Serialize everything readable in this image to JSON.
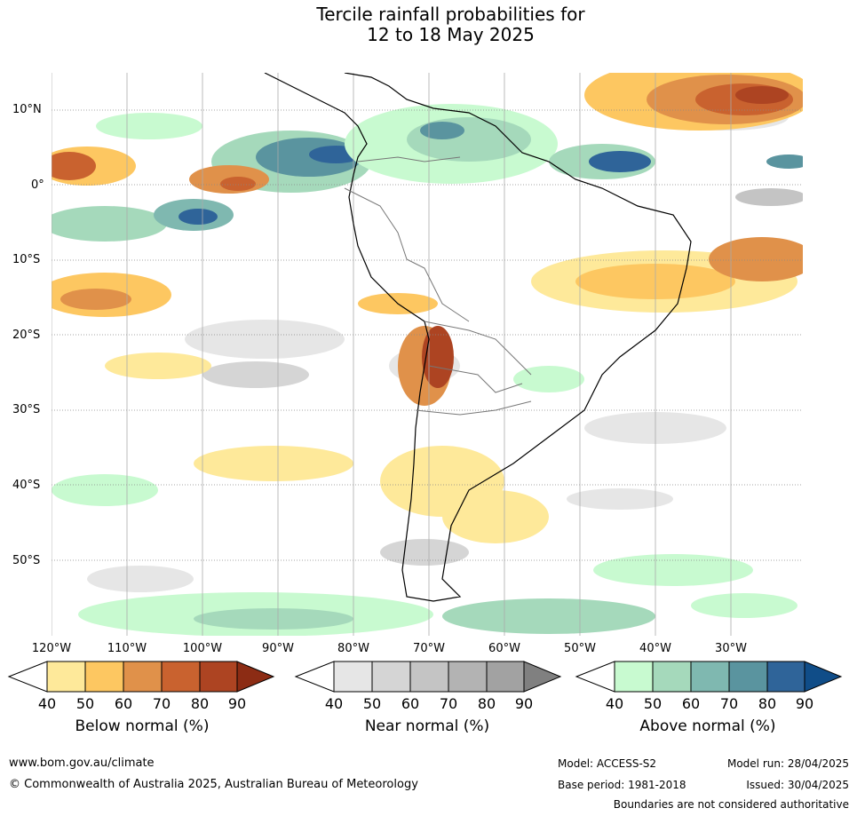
{
  "title_line1": "Tercile rainfall probabilities for",
  "title_line2": "12 to 18 May 2025",
  "lat_labels": [
    "10°N",
    "0°",
    "10°S",
    "20°S",
    "30°S",
    "40°S",
    "50°S"
  ],
  "lon_labels": [
    "120°W",
    "110°W",
    "100°W",
    "90°W",
    "80°W",
    "70°W",
    "60°W",
    "50°W",
    "40°W",
    "30°W"
  ],
  "colorbars": [
    {
      "label": "Below normal (%)",
      "ticks": [
        "40",
        "50",
        "60",
        "70",
        "80",
        "90"
      ],
      "colors": [
        "#ffffff",
        "#fee99a",
        "#fdc761",
        "#e0914a",
        "#c9622f",
        "#ad4422",
        "#8c2c14"
      ]
    },
    {
      "label": "Near normal (%)",
      "ticks": [
        "40",
        "50",
        "60",
        "70",
        "80",
        "90"
      ],
      "colors": [
        "#ffffff",
        "#e6e6e6",
        "#d5d5d5",
        "#c4c4c4",
        "#b3b3b3",
        "#a2a2a2",
        "#808080"
      ]
    },
    {
      "label": "Above normal (%)",
      "ticks": [
        "40",
        "50",
        "60",
        "70",
        "80",
        "90"
      ],
      "colors": [
        "#ffffff",
        "#c8fad0",
        "#a5d9bb",
        "#7fb8b0",
        "#5a949f",
        "#2f6499",
        "#104d88"
      ]
    }
  ],
  "footer": {
    "website": "www.bom.gov.au/climate",
    "copyright": "© Commonwealth of Australia 2025, Australian Bureau of Meteorology",
    "model": "Model: ACCESS-S2",
    "base_period": "Base period: 1981-2018",
    "model_run": "Model run: 28/04/2025",
    "issued": "Issued: 30/04/2025",
    "disclaimer": "Boundaries are not considered authoritative"
  }
}
